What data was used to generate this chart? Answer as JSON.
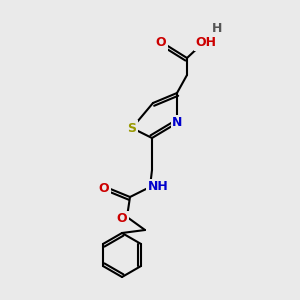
{
  "bg_color": "#eaeaea",
  "bond_color": "#000000",
  "bond_width": 1.5,
  "atom_colors": {
    "O": "#cc0000",
    "N": "#0000cc",
    "S": "#999900",
    "C": "#000000",
    "H": "#555555"
  },
  "font_size": 8.5,
  "fig_size": [
    3.0,
    3.0
  ],
  "dpi": 100
}
